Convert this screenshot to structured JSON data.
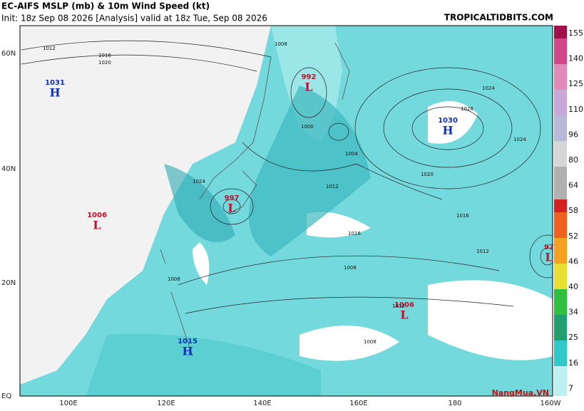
{
  "header": {
    "title": "EC-AIFS MSLP (mb) & 10m Wind Speed (kt)",
    "subtitle": "Init: 18z Sep 08 2026   [Analysis]   valid at 18z Tue, Sep 08 2026",
    "source": "TROPICALTIDBITS.COM"
  },
  "lat_labels": [
    "60N",
    "40N",
    "20N",
    "EQ"
  ],
  "lon_labels": [
    "100E",
    "120E",
    "140E",
    "160E",
    "180",
    "160W"
  ],
  "colorbar_labels": [
    "155",
    "140",
    "125",
    "110",
    "96",
    "80",
    "64",
    "58",
    "52",
    "46",
    "40",
    "34",
    "25",
    "16",
    "7"
  ],
  "pressure_centers": [
    {
      "letter": "H",
      "value": "1031"
    },
    {
      "letter": "L",
      "value": "992"
    },
    {
      "letter": "H",
      "value": "1030"
    },
    {
      "letter": "L",
      "value": "997"
    },
    {
      "letter": "L",
      "value": "1006"
    },
    {
      "letter": "L",
      "value": "1006"
    },
    {
      "letter": "H",
      "value": "1015"
    },
    {
      "letter": "L",
      "value": "97"
    }
  ],
  "isobar_labels": [
    "1012",
    "1016",
    "1020",
    "1024",
    "1008",
    "1000",
    "1004",
    "1012",
    "1016",
    "1020",
    "1024",
    "1012",
    "1008",
    "1008",
    "1012",
    "1016",
    "1008",
    "1028",
    "1024"
  ],
  "watermark": "NangMua.VN"
}
